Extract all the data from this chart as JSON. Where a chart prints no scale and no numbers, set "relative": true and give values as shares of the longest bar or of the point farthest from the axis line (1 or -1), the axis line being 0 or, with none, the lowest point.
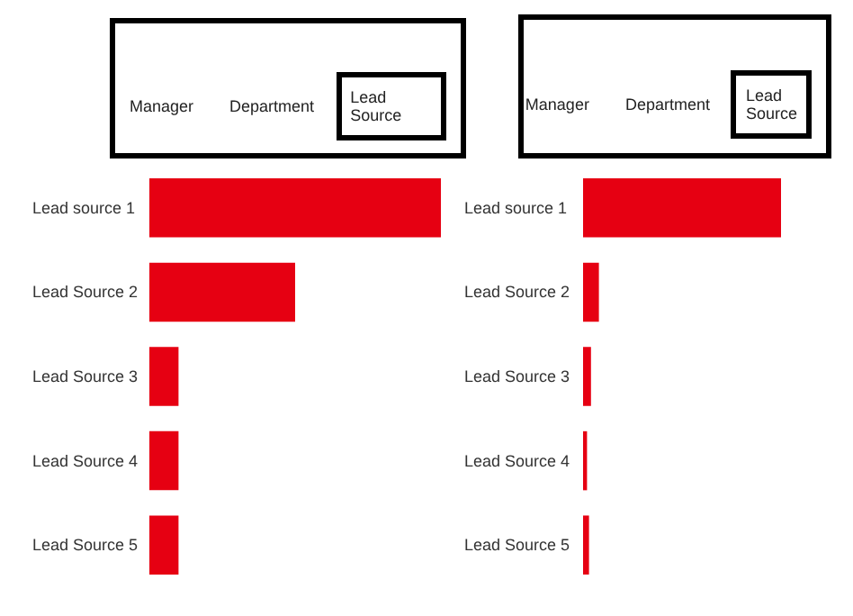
{
  "chart_data": [
    {
      "type": "bar",
      "orientation": "horizontal",
      "relative": true,
      "categories": [
        "Lead source 1",
        "Lead Source 2",
        "Lead Source 3",
        "Lead Source 4",
        "Lead Source 5"
      ],
      "values": [
        1,
        0.5,
        0.1,
        0.1,
        0.1
      ],
      "color": "#e60012",
      "annotations": [
        "Manager",
        "Department",
        "Lead Source"
      ]
    },
    {
      "type": "bar",
      "orientation": "horizontal",
      "relative": true,
      "categories": [
        "Lead source 1",
        "Lead Source 2",
        "Lead Source 3",
        "Lead Source 4",
        "Lead Source 5"
      ],
      "values": [
        1,
        0.08,
        0.04,
        0.02,
        0.03
      ],
      "color": "#e60012",
      "annotations": [
        "Manager",
        "Department",
        "Lead Source"
      ]
    }
  ]
}
